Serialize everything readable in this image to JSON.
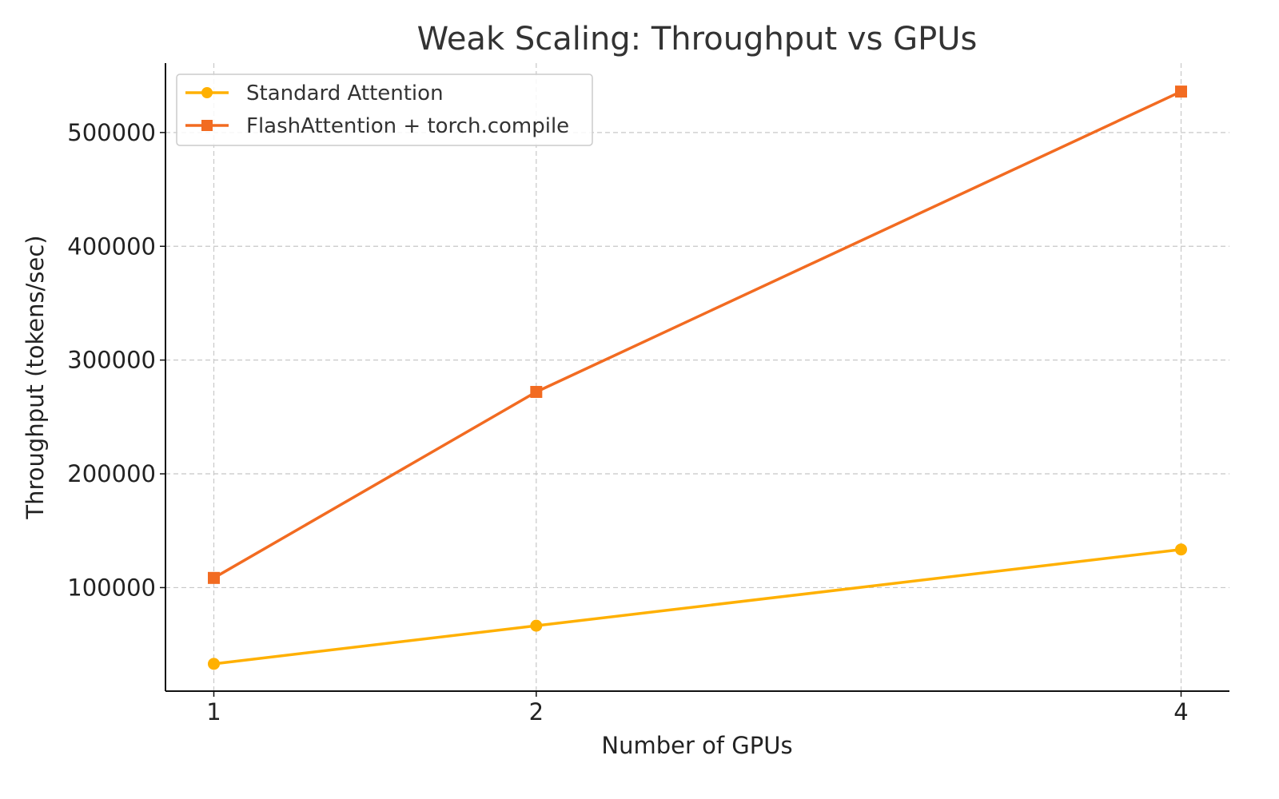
{
  "chart_data": {
    "type": "line",
    "title": "Weak Scaling: Throughput vs GPUs",
    "xlabel": "Number of GPUs",
    "ylabel": "Throughput (tokens/sec)",
    "x": [
      1,
      2,
      4
    ],
    "xticks": [
      "1",
      "2",
      "4"
    ],
    "xlim": [
      0.85,
      4.15
    ],
    "ylim": [
      9000,
      561000
    ],
    "yticks": [
      "100000",
      "200000",
      "300000",
      "400000",
      "500000"
    ],
    "grid": true,
    "legend_position": "top-left",
    "series": [
      {
        "name": "Standard Attention",
        "values": [
          33000,
          66500,
          133500
        ],
        "color": "#FFB000",
        "marker": "circle"
      },
      {
        "name": "FlashAttention + torch.compile",
        "values": [
          108500,
          272000,
          536000
        ],
        "color": "#F26B21",
        "marker": "square"
      }
    ]
  }
}
